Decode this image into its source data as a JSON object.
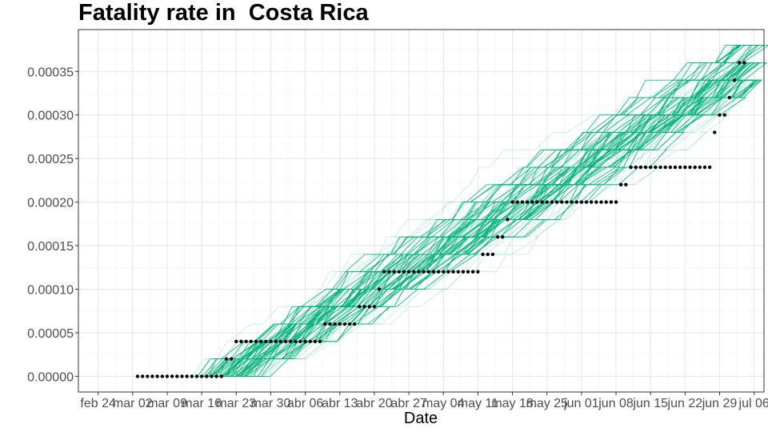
{
  "chart_data": {
    "type": "line",
    "title": "Fatality rate in  Costa Rica",
    "xlabel": "Date",
    "ylabel": "",
    "start_date": "2020-03-03",
    "observed": {
      "name": "observed",
      "color": "#000000",
      "values": [
        0,
        0,
        0,
        0,
        0,
        0,
        0,
        0,
        0,
        0,
        0,
        0,
        0,
        0,
        0,
        0,
        0,
        0,
        2e-05,
        2e-05,
        4e-05,
        4e-05,
        4e-05,
        4e-05,
        4e-05,
        4e-05,
        4e-05,
        4e-05,
        4e-05,
        4e-05,
        4e-05,
        4e-05,
        4e-05,
        4e-05,
        4e-05,
        4e-05,
        4e-05,
        4e-05,
        6e-05,
        6e-05,
        6e-05,
        6e-05,
        6e-05,
        6e-05,
        6e-05,
        8e-05,
        8e-05,
        8e-05,
        8e-05,
        0.0001,
        0.00012,
        0.00012,
        0.00012,
        0.00012,
        0.00012,
        0.00012,
        0.00012,
        0.00012,
        0.00012,
        0.00012,
        0.00012,
        0.00012,
        0.00012,
        0.00012,
        0.00012,
        0.00012,
        0.00012,
        0.00012,
        0.00012,
        0.00012,
        0.00014,
        0.00014,
        0.00014,
        0.00016,
        0.00016,
        0.00018,
        0.0002,
        0.0002,
        0.0002,
        0.0002,
        0.0002,
        0.0002,
        0.0002,
        0.0002,
        0.0002,
        0.0002,
        0.0002,
        0.0002,
        0.0002,
        0.0002,
        0.0002,
        0.0002,
        0.0002,
        0.0002,
        0.0002,
        0.0002,
        0.0002,
        0.0002,
        0.00022,
        0.00022,
        0.00024,
        0.00024,
        0.00024,
        0.00024,
        0.00024,
        0.00024,
        0.00024,
        0.00024,
        0.00024,
        0.00024,
        0.00024,
        0.00024,
        0.00024,
        0.00024,
        0.00024,
        0.00024,
        0.00024,
        0.00028,
        0.0003,
        0.0003,
        0.00032,
        0.00034,
        0.00036,
        0.00036
      ]
    },
    "simulations": {
      "name": "simulated trajectories",
      "color": "#00b07a",
      "count": 90,
      "end_levels": [
        0.00034,
        0.00036,
        0.00038
      ]
    },
    "x_ticks": [
      "feb 24",
      "mar 02",
      "mar 09",
      "mar 16",
      "mar 23",
      "mar 30",
      "abr 06",
      "abr 13",
      "abr 20",
      "abr 27",
      "may 04",
      "may 11",
      "may 18",
      "may 25",
      "jun 01",
      "jun 08",
      "jun 15",
      "jun 22",
      "jun 29",
      "jul 06"
    ],
    "y_ticks": [
      "0.00000",
      "0.00005",
      "0.00010",
      "0.00015",
      "0.00020",
      "0.00025",
      "0.00030",
      "0.00035"
    ],
    "xlim": [
      "2020-02-20",
      "2020-07-08"
    ],
    "ylim": [
      -1.8e-05,
      0.000398
    ],
    "grid": true,
    "legend": "none"
  }
}
